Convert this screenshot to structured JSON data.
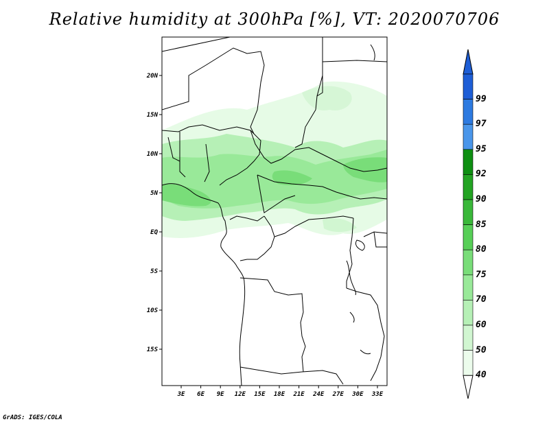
{
  "title": "Relative humidity at 300hPa [%], VT: 2020070706",
  "footer": "GrADS: IGES/COLA",
  "map": {
    "lat_ticks": [
      "20N",
      "15N",
      "10N",
      "5N",
      "EQ",
      "5S",
      "10S",
      "15S"
    ],
    "lon_ticks": [
      "3E",
      "6E",
      "9E",
      "12E",
      "15E",
      "18E",
      "21E",
      "24E",
      "27E",
      "30E",
      "33E"
    ]
  },
  "colorbar": {
    "labels": [
      "99",
      "97",
      "95",
      "92",
      "90",
      "85",
      "80",
      "75",
      "70",
      "60",
      "50",
      "40"
    ],
    "colors": [
      "#1e5ed6",
      "#2d7ae0",
      "#4a96ea",
      "#0e8f12",
      "#23a423",
      "#3ab83a",
      "#57cf57",
      "#79dd79",
      "#99e999",
      "#b6f0b6",
      "#d1f6d1",
      "#ecfcec"
    ],
    "under_color": "#ffffff",
    "over_color": "#1e5ed6"
  }
}
